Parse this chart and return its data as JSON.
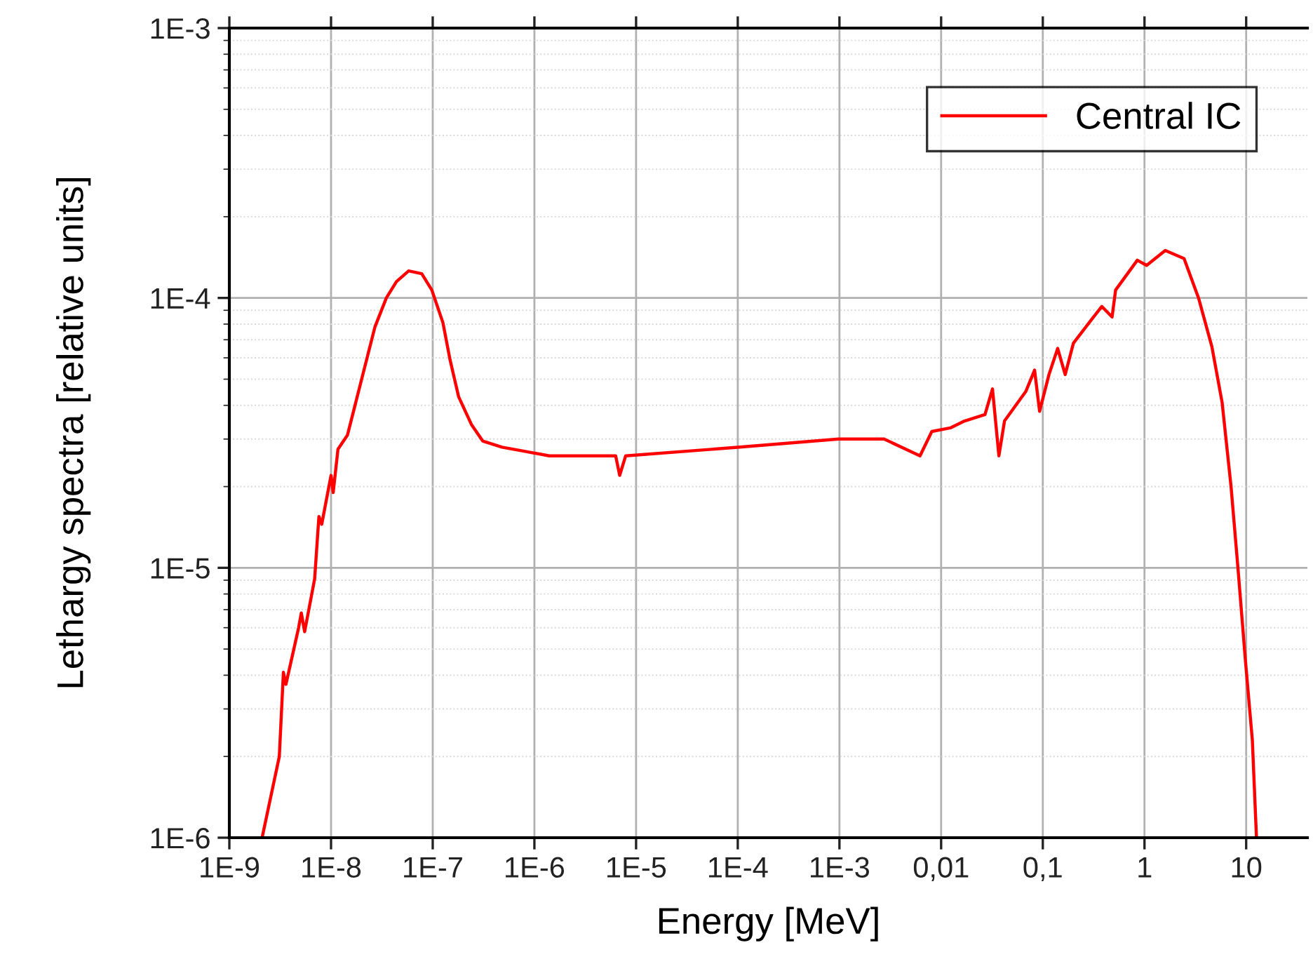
{
  "chart_data": {
    "type": "line",
    "xlabel": "Energy [MeV]",
    "ylabel": "Lethargy spectra [relative units]",
    "log": "xy",
    "grid": true,
    "legend": "top right",
    "marker": "none",
    "line_style": "solid",
    "xlim": [
      1e-09,
      40
    ],
    "ylim": [
      1e-06,
      0.001
    ],
    "xticks": [
      {
        "value": 1e-09,
        "label": "1E-9"
      },
      {
        "value": 1e-08,
        "label": "1E-8"
      },
      {
        "value": 1e-07,
        "label": "1E-7"
      },
      {
        "value": 1e-06,
        "label": "1E-6"
      },
      {
        "value": 1e-05,
        "label": "1E-5"
      },
      {
        "value": 0.0001,
        "label": "1E-4"
      },
      {
        "value": 0.001,
        "label": "1E-3"
      },
      {
        "value": 0.01,
        "label": "0,01"
      },
      {
        "value": 0.1,
        "label": "0,1"
      },
      1,
      10
    ],
    "yticks": [
      {
        "value": 1e-06,
        "label": "1E-6"
      },
      {
        "value": 1e-05,
        "label": "1E-5"
      },
      {
        "value": 0.0001,
        "label": "1E-4"
      },
      {
        "value": 0.001,
        "label": "1E-3"
      }
    ],
    "series": [
      {
        "name": "Central IC",
        "color": "#ff0000",
        "x": [
          2.1e-09,
          3.1e-09,
          3.4e-09,
          3.6e-09,
          4.8e-09,
          5.1e-09,
          5.5e-09,
          6.9e-09,
          7.6e-09,
          8.1e-09,
          1e-08,
          1.05e-08,
          1.17e-08,
          1.45e-08,
          2e-08,
          2.7e-08,
          3.5e-08,
          4.4e-08,
          5.8e-08,
          7.8e-08,
          9.8e-08,
          1.26e-07,
          1.48e-07,
          1.8e-07,
          2.4e-07,
          3.1e-07,
          4.8e-07,
          8.1e-07,
          1.4e-06,
          1.7e-06,
          6.3e-06,
          6.9e-06,
          7.9e-06,
          0.000105,
          0.00098,
          0.00275,
          0.0062,
          0.0081,
          0.0123,
          0.017,
          0.027,
          0.032,
          0.037,
          0.042,
          0.068,
          0.083,
          0.093,
          0.115,
          0.14,
          0.166,
          0.2,
          0.3,
          0.38,
          0.48,
          0.52,
          0.85,
          1.05,
          1.6,
          2.45,
          3.4,
          4.6,
          5.8,
          7.1,
          8.3,
          9.8,
          11.5,
          12.6
        ],
        "values": [
          1e-06,
          2e-06,
          4.1e-06,
          3.7e-06,
          6e-06,
          6.8e-06,
          5.8e-06,
          9.1e-06,
          1.55e-05,
          1.45e-05,
          2.2e-05,
          1.9e-05,
          2.75e-05,
          3.1e-05,
          5e-05,
          7.8e-05,
          0.0001,
          0.000115,
          0.000126,
          0.000123,
          0.000107,
          8.1e-05,
          5.9e-05,
          4.3e-05,
          3.4e-05,
          2.95e-05,
          2.8e-05,
          2.7e-05,
          2.6e-05,
          2.6e-05,
          2.6e-05,
          2.2e-05,
          2.6e-05,
          2.8e-05,
          3e-05,
          3e-05,
          2.6e-05,
          3.2e-05,
          3.3e-05,
          3.5e-05,
          3.7e-05,
          4.6e-05,
          2.6e-05,
          3.5e-05,
          4.5e-05,
          5.4e-05,
          3.8e-05,
          5.2e-05,
          6.5e-05,
          5.2e-05,
          6.8e-05,
          8.3e-05,
          9.3e-05,
          8.5e-05,
          0.000107,
          0.000138,
          0.000132,
          0.00015,
          0.00014,
          0.0001,
          6.6e-05,
          4.1e-05,
          2e-05,
          1e-05,
          4.6e-06,
          2.3e-06,
          1.02e-06
        ]
      }
    ]
  }
}
